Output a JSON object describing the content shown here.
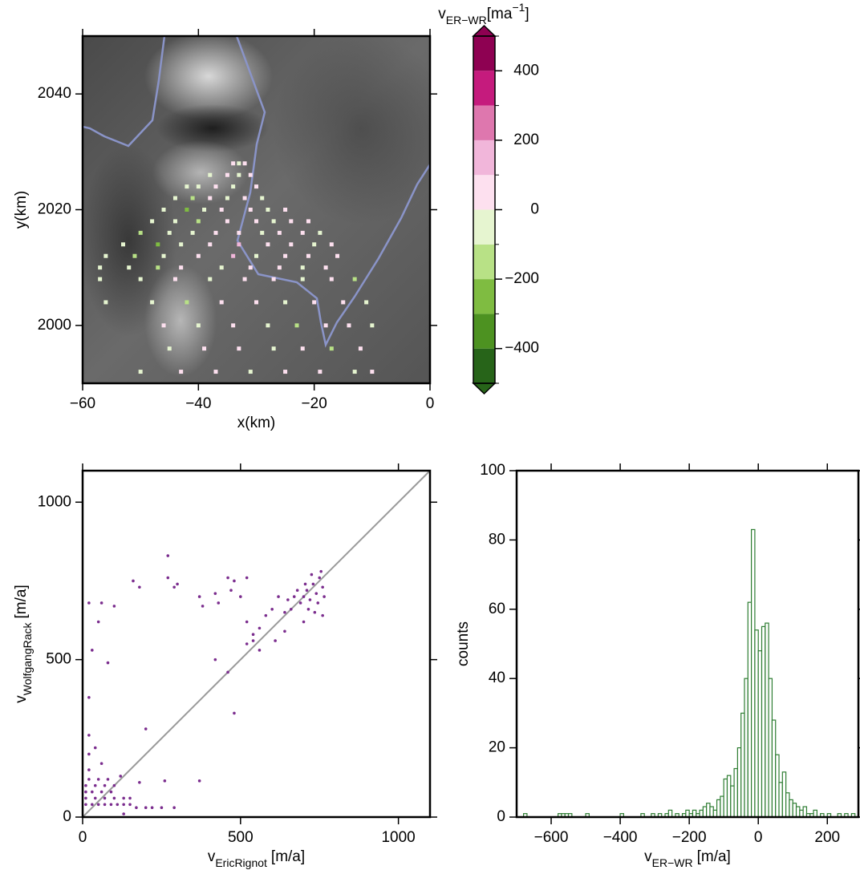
{
  "chart_data": [
    {
      "type": "heatmap",
      "x_label": "x(km)",
      "y_label": "y(km)",
      "xlim": [
        -60,
        0
      ],
      "ylim": [
        1990,
        2050
      ],
      "xticks": [
        {
          "value": -60,
          "label": "−60"
        },
        {
          "value": -40,
          "label": "−40"
        },
        {
          "value": -20,
          "label": "−20"
        },
        0
      ],
      "yticks": [
        2000,
        2020,
        2040
      ],
      "points": {
        "x": [
          -34,
          -33,
          -32,
          -38,
          -35,
          -33,
          -31,
          -42,
          -40,
          -37,
          -34,
          -30,
          -44,
          -41,
          -38,
          -35,
          -32,
          -29,
          -46,
          -42,
          -39,
          -36,
          -31,
          -28,
          -25,
          -48,
          -44,
          -40,
          -35,
          -30,
          -27,
          -24,
          -21,
          -50,
          -45,
          -41,
          -37,
          -33,
          -29,
          -26,
          -22,
          -19,
          -53,
          -47,
          -43,
          -38,
          -33,
          -28,
          -24,
          -20,
          -17,
          -56,
          -51,
          -46,
          -40,
          -34,
          -30,
          -25,
          -21,
          -16,
          -57,
          -52,
          -47,
          -43,
          -36,
          -31,
          -26,
          -22,
          -18,
          -57,
          -50,
          -44,
          -38,
          -32,
          -27,
          -22,
          -17,
          -13,
          -56,
          -48,
          -42,
          -36,
          -30,
          -25,
          -20,
          -15,
          -11,
          -46,
          -40,
          -34,
          -28,
          -23,
          -18,
          -14,
          -10,
          -45,
          -39,
          -33,
          -27,
          -22,
          -17,
          -12,
          -50,
          -43,
          -37,
          -31,
          -25,
          -19,
          -13,
          -10
        ],
        "y": [
          2028,
          2028,
          2028,
          2026,
          2026,
          2026,
          2026,
          2024,
          2024,
          2024,
          2024,
          2024,
          2022,
          2022,
          2022,
          2022,
          2022,
          2022,
          2020,
          2020,
          2020,
          2020,
          2020,
          2020,
          2020,
          2018,
          2018,
          2018,
          2018,
          2018,
          2018,
          2018,
          2018,
          2016,
          2016,
          2016,
          2016,
          2016,
          2016,
          2016,
          2016,
          2016,
          2014,
          2014,
          2014,
          2014,
          2014,
          2014,
          2014,
          2014,
          2014,
          2012,
          2012,
          2012,
          2012,
          2012,
          2012,
          2012,
          2012,
          2012,
          2010,
          2010,
          2010,
          2010,
          2010,
          2010,
          2010,
          2010,
          2010,
          2008,
          2008,
          2008,
          2008,
          2008,
          2008,
          2008,
          2008,
          2008,
          2004,
          2004,
          2004,
          2004,
          2004,
          2004,
          2004,
          2004,
          2004,
          2000,
          2000,
          2000,
          2000,
          2000,
          2000,
          2000,
          2000,
          1996,
          1996,
          1996,
          1996,
          1996,
          1996,
          1996,
          1992,
          1992,
          1992,
          1992,
          1992,
          1992,
          1992,
          1992
        ],
        "values": [
          50,
          -50,
          20,
          -60,
          30,
          -40,
          10,
          -80,
          -30,
          60,
          -20,
          40,
          -50,
          -150,
          20,
          -70,
          30,
          -30,
          -60,
          -250,
          -40,
          50,
          20,
          -20,
          60,
          -30,
          -60,
          -150,
          80,
          40,
          -40,
          30,
          10,
          -150,
          -80,
          -40,
          30,
          60,
          -20,
          40,
          20,
          -30,
          -60,
          -250,
          -30,
          70,
          150,
          20,
          60,
          -40,
          30,
          -40,
          -150,
          -60,
          20,
          120,
          -20,
          40,
          30,
          60,
          -30,
          -60,
          -150,
          40,
          -20,
          60,
          30,
          -40,
          20,
          -60,
          -40,
          20,
          -80,
          40,
          60,
          -20,
          30,
          -150,
          -50,
          -30,
          -150,
          20,
          50,
          -40,
          30,
          60,
          -20,
          30,
          -60,
          40,
          -30,
          -150,
          20,
          50,
          -40,
          -60,
          20,
          60,
          -20,
          30,
          -150,
          40,
          -40,
          30,
          60,
          -30,
          20,
          50,
          -20,
          10
        ]
      },
      "colorbar": {
        "label": {
          "base": "v",
          "sub": "ER−WR",
          "unit": "[ma",
          "sup": "−1",
          "end": "]"
        },
        "levels": [
          -500,
          -400,
          -300,
          -200,
          -100,
          0,
          100,
          200,
          300,
          400,
          500
        ],
        "colors": [
          "#276419",
          "#4d9221",
          "#7fbc41",
          "#b8e186",
          "#e6f5d0",
          "#fde0ef",
          "#f1b6da",
          "#de77ae",
          "#c51b7d",
          "#8e0152"
        ],
        "ticks": [
          {
            "value": -400,
            "label": "−400"
          },
          {
            "value": -200,
            "label": "−200"
          },
          0,
          200,
          400
        ]
      }
    },
    {
      "type": "scatter",
      "x_label": {
        "base": "v",
        "sub": "EricRignot",
        "unit": "[m/a]"
      },
      "y_label": {
        "base": "v",
        "sub": "WolfgangRack",
        "unit": "[m/a]"
      },
      "xlim": [
        0,
        1100
      ],
      "ylim": [
        0,
        1100
      ],
      "xticks": [
        0,
        500,
        1000
      ],
      "yticks": [
        0,
        500,
        1000
      ],
      "color": "#7b2d8e",
      "identity_line": true,
      "identity_line_color": "#9a9a9a",
      "x": [
        700,
        710,
        720,
        730,
        740,
        750,
        760,
        745,
        735,
        755,
        725,
        715,
        705,
        765,
        690,
        680,
        670,
        660,
        650,
        640,
        620,
        600,
        580,
        560,
        540,
        520,
        500,
        480,
        470,
        460,
        520,
        430,
        420,
        380,
        370,
        300,
        290,
        270,
        520,
        540,
        480,
        460,
        420,
        200,
        180,
        160,
        100,
        60,
        50,
        20,
        80,
        30,
        20,
        270,
        640,
        700,
        760,
        610,
        560,
        10,
        30,
        50,
        70,
        90,
        110,
        130,
        150,
        10,
        40,
        70,
        100,
        130,
        150,
        10,
        30,
        60,
        90,
        10,
        40,
        70,
        100,
        20,
        50,
        80,
        20,
        60,
        20,
        40,
        20,
        170,
        200,
        250,
        290,
        120,
        180,
        260,
        370,
        220,
        130
      ],
      "y": [
        700,
        720,
        690,
        740,
        710,
        760,
        730,
        680,
        650,
        780,
        770,
        660,
        740,
        700,
        680,
        720,
        700,
        660,
        690,
        650,
        700,
        660,
        640,
        600,
        580,
        620,
        700,
        750,
        720,
        760,
        760,
        680,
        710,
        670,
        700,
        740,
        730,
        760,
        550,
        560,
        330,
        460,
        500,
        280,
        730,
        750,
        670,
        680,
        620,
        680,
        490,
        530,
        380,
        830,
        590,
        620,
        640,
        560,
        530,
        40,
        40,
        40,
        40,
        40,
        40,
        40,
        40,
        60,
        60,
        60,
        60,
        60,
        60,
        80,
        80,
        80,
        80,
        100,
        100,
        100,
        100,
        120,
        120,
        120,
        150,
        170,
        200,
        220,
        260,
        30,
        30,
        30,
        30,
        130,
        110,
        115,
        115,
        30,
        10
      ]
    },
    {
      "type": "histogram",
      "x_label": {
        "base": "v",
        "sub": "ER−WR",
        "unit": "[m/a]"
      },
      "y_label": "counts",
      "xlim": [
        -700,
        290
      ],
      "ylim": [
        0,
        100
      ],
      "xticks": [
        {
          "value": -600,
          "label": "−600"
        },
        {
          "value": -400,
          "label": "−400"
        },
        {
          "value": -200,
          "label": "−200"
        },
        0,
        200
      ],
      "yticks": [
        0,
        20,
        40,
        60,
        80,
        100
      ],
      "color": "#2e7d32",
      "bins": [
        -680,
        -670,
        -660,
        -650,
        -640,
        -630,
        -620,
        -610,
        -600,
        -590,
        -580,
        -570,
        -560,
        -550,
        -540,
        -530,
        -520,
        -510,
        -500,
        -490,
        -480,
        -470,
        -460,
        -450,
        -440,
        -430,
        -420,
        -410,
        -400,
        -390,
        -380,
        -370,
        -360,
        -350,
        -340,
        -330,
        -320,
        -310,
        -300,
        -290,
        -280,
        -270,
        -260,
        -250,
        -240,
        -230,
        -220,
        -210,
        -200,
        -190,
        -180,
        -170,
        -160,
        -150,
        -140,
        -130,
        -120,
        -110,
        -100,
        -90,
        -80,
        -70,
        -60,
        -50,
        -40,
        -30,
        -20,
        -10,
        0,
        10,
        20,
        30,
        40,
        50,
        60,
        70,
        80,
        90,
        100,
        110,
        120,
        130,
        140,
        150,
        160,
        170,
        180,
        190,
        200,
        210,
        220,
        230,
        240,
        250,
        260,
        270,
        280
      ],
      "counts": [
        1,
        0,
        0,
        0,
        0,
        0,
        0,
        0,
        0,
        0,
        1,
        1,
        1,
        1,
        0,
        0,
        0,
        0,
        1,
        0,
        0,
        0,
        0,
        0,
        0,
        0,
        0,
        0,
        1,
        0,
        0,
        0,
        0,
        0,
        1,
        0,
        0,
        1,
        0,
        1,
        0,
        1,
        2,
        0,
        1,
        0,
        1,
        2,
        1,
        2,
        1,
        2,
        3,
        4,
        3,
        2,
        5,
        6,
        11,
        12,
        9,
        14,
        20,
        30,
        40,
        62,
        83,
        54,
        48,
        55,
        56,
        40,
        28,
        18,
        10,
        13,
        7,
        5,
        4,
        3,
        2,
        3,
        1,
        1,
        2,
        0,
        1,
        0,
        1,
        0,
        0,
        1,
        0,
        1,
        0,
        1
      ]
    }
  ]
}
